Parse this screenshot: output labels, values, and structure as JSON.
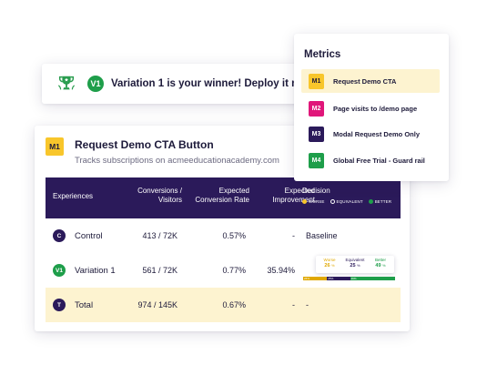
{
  "winner": {
    "badge": "V1",
    "message": "Variation 1 is your winner! Deploy it now.",
    "trophy_icon": "trophy-icon",
    "trophy_color": "#2a9d4f"
  },
  "report": {
    "badge": "M1",
    "title": "Request Demo CTA Button",
    "subtitle": "Tracks subscriptions on acmeeducationacademy.com",
    "table": {
      "headers": {
        "experiences": "Experiences",
        "conversions": "Conversions / Visitors",
        "conversion_rate": "Expected Conversion Rate",
        "improvement": "Expected Improvement",
        "decision": "Decision"
      },
      "legend": [
        {
          "label": "WORSE",
          "color": "#f8c62b"
        },
        {
          "label": "EQUIVALENT",
          "color": "#2b1a5a"
        },
        {
          "label": "BETTER",
          "color": "#1e9e4a"
        }
      ],
      "rows": [
        {
          "badge": "C",
          "badge_color": "#2b1a5a",
          "name": "Control",
          "conversions": "413 / 72K",
          "conversion_rate": "0.57%",
          "improvement": "-",
          "decision": "Baseline"
        },
        {
          "badge": "V1",
          "badge_color": "#1e9e4a",
          "name": "Variation 1",
          "conversions": "561 / 72K",
          "conversion_rate": "0.77%",
          "improvement": "35.94%",
          "decision": ""
        },
        {
          "badge": "T",
          "badge_color": "#2b1a5a",
          "name": "Total",
          "conversions": "974 / 145K",
          "conversion_rate": "0.67%",
          "improvement": "-",
          "decision": "-"
        }
      ],
      "decision_chart": {
        "worse": {
          "label": "Worse",
          "value": "26",
          "unit": "%",
          "color": "#e0a800",
          "bar_label": "26%"
        },
        "equivalent": {
          "label": "Equivalent",
          "value": "25",
          "unit": "%",
          "color": "#2b1a5a",
          "bar_label": "25%"
        },
        "better": {
          "label": "Better",
          "value": "49",
          "unit": "%",
          "color": "#1e9e4a",
          "bar_label": "49%"
        }
      }
    }
  },
  "metrics": {
    "title": "Metrics",
    "items": [
      {
        "badge": "M1",
        "label": "Request Demo CTA",
        "color": "#f8c62b",
        "text_color": "#1d1a3a",
        "selected": true
      },
      {
        "badge": "M2",
        "label": "Page visits to /demo page",
        "color": "#e0177a",
        "text_color": "#ffffff",
        "selected": false
      },
      {
        "badge": "M3",
        "label": "Modal Request Demo Only",
        "color": "#2b1a5a",
        "text_color": "#ffffff",
        "selected": false
      },
      {
        "badge": "M4",
        "label": "Global Free Trial - Guard rail",
        "color": "#1e9e4a",
        "text_color": "#ffffff",
        "selected": false
      }
    ]
  }
}
